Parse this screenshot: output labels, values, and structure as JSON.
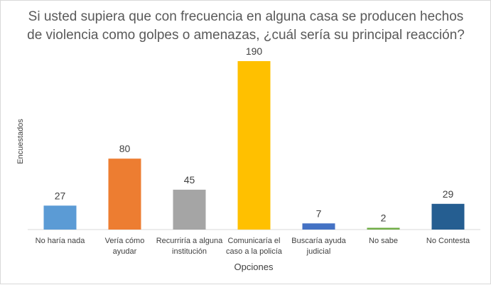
{
  "chart_data": {
    "type": "bar",
    "title_lines": [
      "Si usted supiera que con frecuencia en alguna casa se producen hechos",
      "de violencia como golpes o amenazas, ¿cuál sería su principal reacción?"
    ],
    "xlabel": "Opciones",
    "ylabel": "Encuestados",
    "ylim": [
      0,
      190
    ],
    "grid": false,
    "legend": "none",
    "categories": [
      [
        "No haría nada"
      ],
      [
        "Vería cómo",
        "ayudar"
      ],
      [
        "Recurriría a alguna",
        "institución"
      ],
      [
        "Comunicaría el",
        "caso a la policía"
      ],
      [
        "Buscaría ayuda",
        "judicial"
      ],
      [
        "No sabe"
      ],
      [
        "No Contesta"
      ]
    ],
    "values": [
      27,
      80,
      45,
      190,
      7,
      2,
      29
    ],
    "colors": [
      "#5b9bd5",
      "#ed7d31",
      "#a5a5a5",
      "#ffc000",
      "#4472c4",
      "#70ad47",
      "#255e91"
    ]
  }
}
